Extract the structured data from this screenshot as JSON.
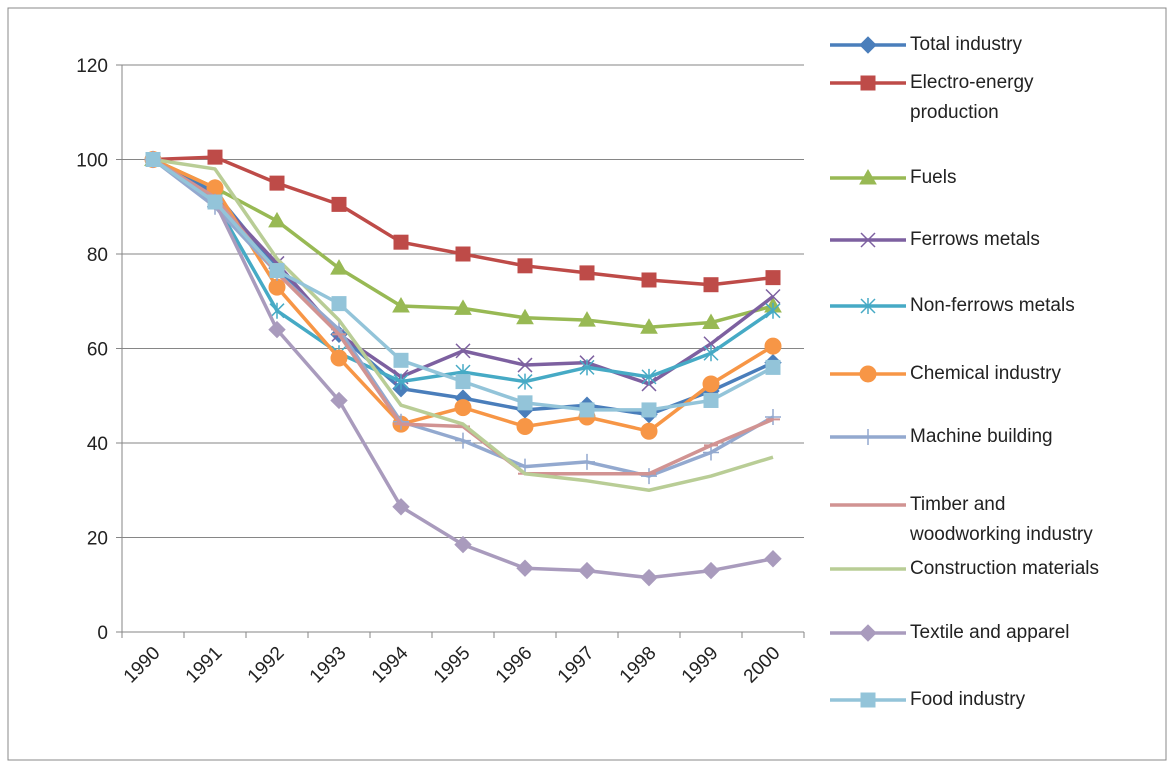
{
  "chart_data": {
    "type": "line",
    "categories": [
      "1990",
      "1991",
      "1992",
      "1993",
      "1994",
      "1995",
      "1996",
      "1997",
      "1998",
      "1999",
      "2000"
    ],
    "ylim": [
      0,
      120
    ],
    "yticks": [
      0,
      20,
      40,
      60,
      80,
      100,
      120
    ],
    "grid": true,
    "legend": "right",
    "series": [
      {
        "name": "Total industry",
        "color": "#4a7ebb",
        "marker": "diamond",
        "values": [
          100,
          93,
          77,
          63,
          51.5,
          49.5,
          47,
          48,
          46,
          51,
          57
        ]
      },
      {
        "name": "Electro-energy production",
        "color": "#be4b48",
        "marker": "square",
        "values": [
          100,
          100.5,
          95,
          90.5,
          82.5,
          80,
          77.5,
          76,
          74.5,
          73.5,
          75
        ]
      },
      {
        "name": "Fuels",
        "color": "#98b954",
        "marker": "triangle",
        "values": [
          100,
          94,
          87,
          77,
          69,
          68.5,
          66.5,
          66,
          64.5,
          65.5,
          69
        ]
      },
      {
        "name": "Ferrows metals",
        "color": "#7d60a0",
        "marker": "x",
        "values": [
          100,
          92,
          78,
          63,
          54,
          59.5,
          56.5,
          57,
          52.5,
          61,
          71
        ]
      },
      {
        "name": "Non-ferrows metals",
        "color": "#46aac5",
        "marker": "star",
        "values": [
          100,
          91,
          68,
          59,
          53,
          55,
          53,
          56,
          54,
          59,
          68
        ]
      },
      {
        "name": "Chemical industry",
        "color": "#f79646",
        "marker": "circle",
        "values": [
          100,
          94,
          73,
          58,
          44,
          47.5,
          43.5,
          45.5,
          42.5,
          52.5,
          60.5
        ]
      },
      {
        "name": "Machine building",
        "color": "#93a9cf",
        "marker": "plus",
        "values": [
          100,
          90,
          76,
          64,
          44.5,
          40.5,
          35,
          36,
          33,
          38,
          45.5
        ]
      },
      {
        "name": "Timber and woodworking industry",
        "color": "#d19392",
        "marker": "dash",
        "values": [
          100,
          92,
          76,
          63,
          44,
          43.5,
          33.5,
          33.5,
          33.5,
          39.5,
          45
        ]
      },
      {
        "name": "Construction materials",
        "color": "#b9cd96",
        "marker": "none",
        "values": [
          100,
          98,
          79,
          66,
          48,
          44,
          33.5,
          32,
          30,
          33,
          37
        ]
      },
      {
        "name": "Textile and apparel",
        "color": "#a99bbd",
        "marker": "diamond",
        "values": [
          100,
          91,
          64,
          49,
          26.5,
          18.5,
          13.5,
          13,
          11.5,
          13,
          15.5
        ]
      },
      {
        "name": "Food industry",
        "color": "#93c4d9",
        "marker": "square",
        "values": [
          100,
          91,
          76.5,
          69.5,
          57.5,
          53,
          48.5,
          47,
          47,
          49,
          56
        ]
      }
    ]
  }
}
